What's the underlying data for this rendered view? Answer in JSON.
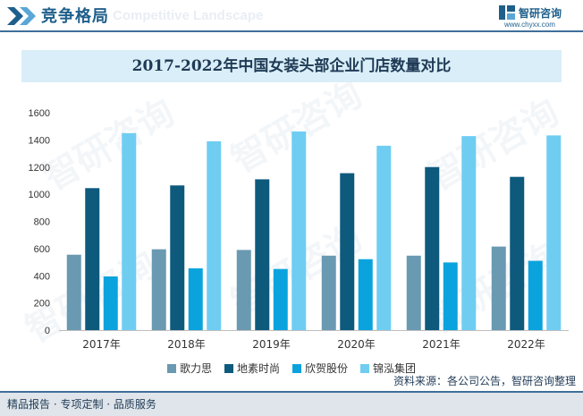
{
  "header": {
    "title": "竞争格局",
    "subtitle": "Competitive Landscape",
    "logo_text": "智研咨询",
    "logo_url": "www.chyxx.com"
  },
  "watermark": "智研咨询",
  "chart_data": {
    "type": "bar",
    "title": "2017-2022年中国女装头部企业门店数量对比",
    "categories": [
      "2017年",
      "2018年",
      "2019年",
      "2020年",
      "2021年",
      "2022年"
    ],
    "series": [
      {
        "name": "歌力思",
        "color": "#6a99b2",
        "values": [
          555,
          595,
          590,
          548,
          548,
          615
        ]
      },
      {
        "name": "地素时尚",
        "color": "#0d5a7d",
        "values": [
          1045,
          1065,
          1110,
          1155,
          1200,
          1128
        ]
      },
      {
        "name": "欣贺股份",
        "color": "#0aa3de",
        "values": [
          395,
          455,
          450,
          522,
          498,
          510
        ]
      },
      {
        "name": "锦泓集团",
        "color": "#6fcdf2",
        "values": [
          1450,
          1390,
          1462,
          1357,
          1428,
          1433
        ]
      }
    ],
    "ylim": [
      0,
      1600
    ],
    "yticks": [
      0,
      200,
      400,
      600,
      800,
      1000,
      1200,
      1400,
      1600
    ],
    "xlabel": "",
    "ylabel": "",
    "grid": false,
    "legend": "bottom"
  },
  "footer": {
    "left": "精品报告 · 专项定制 · 品质服务",
    "source": "资料来源：各公司公告，智研咨询整理"
  }
}
